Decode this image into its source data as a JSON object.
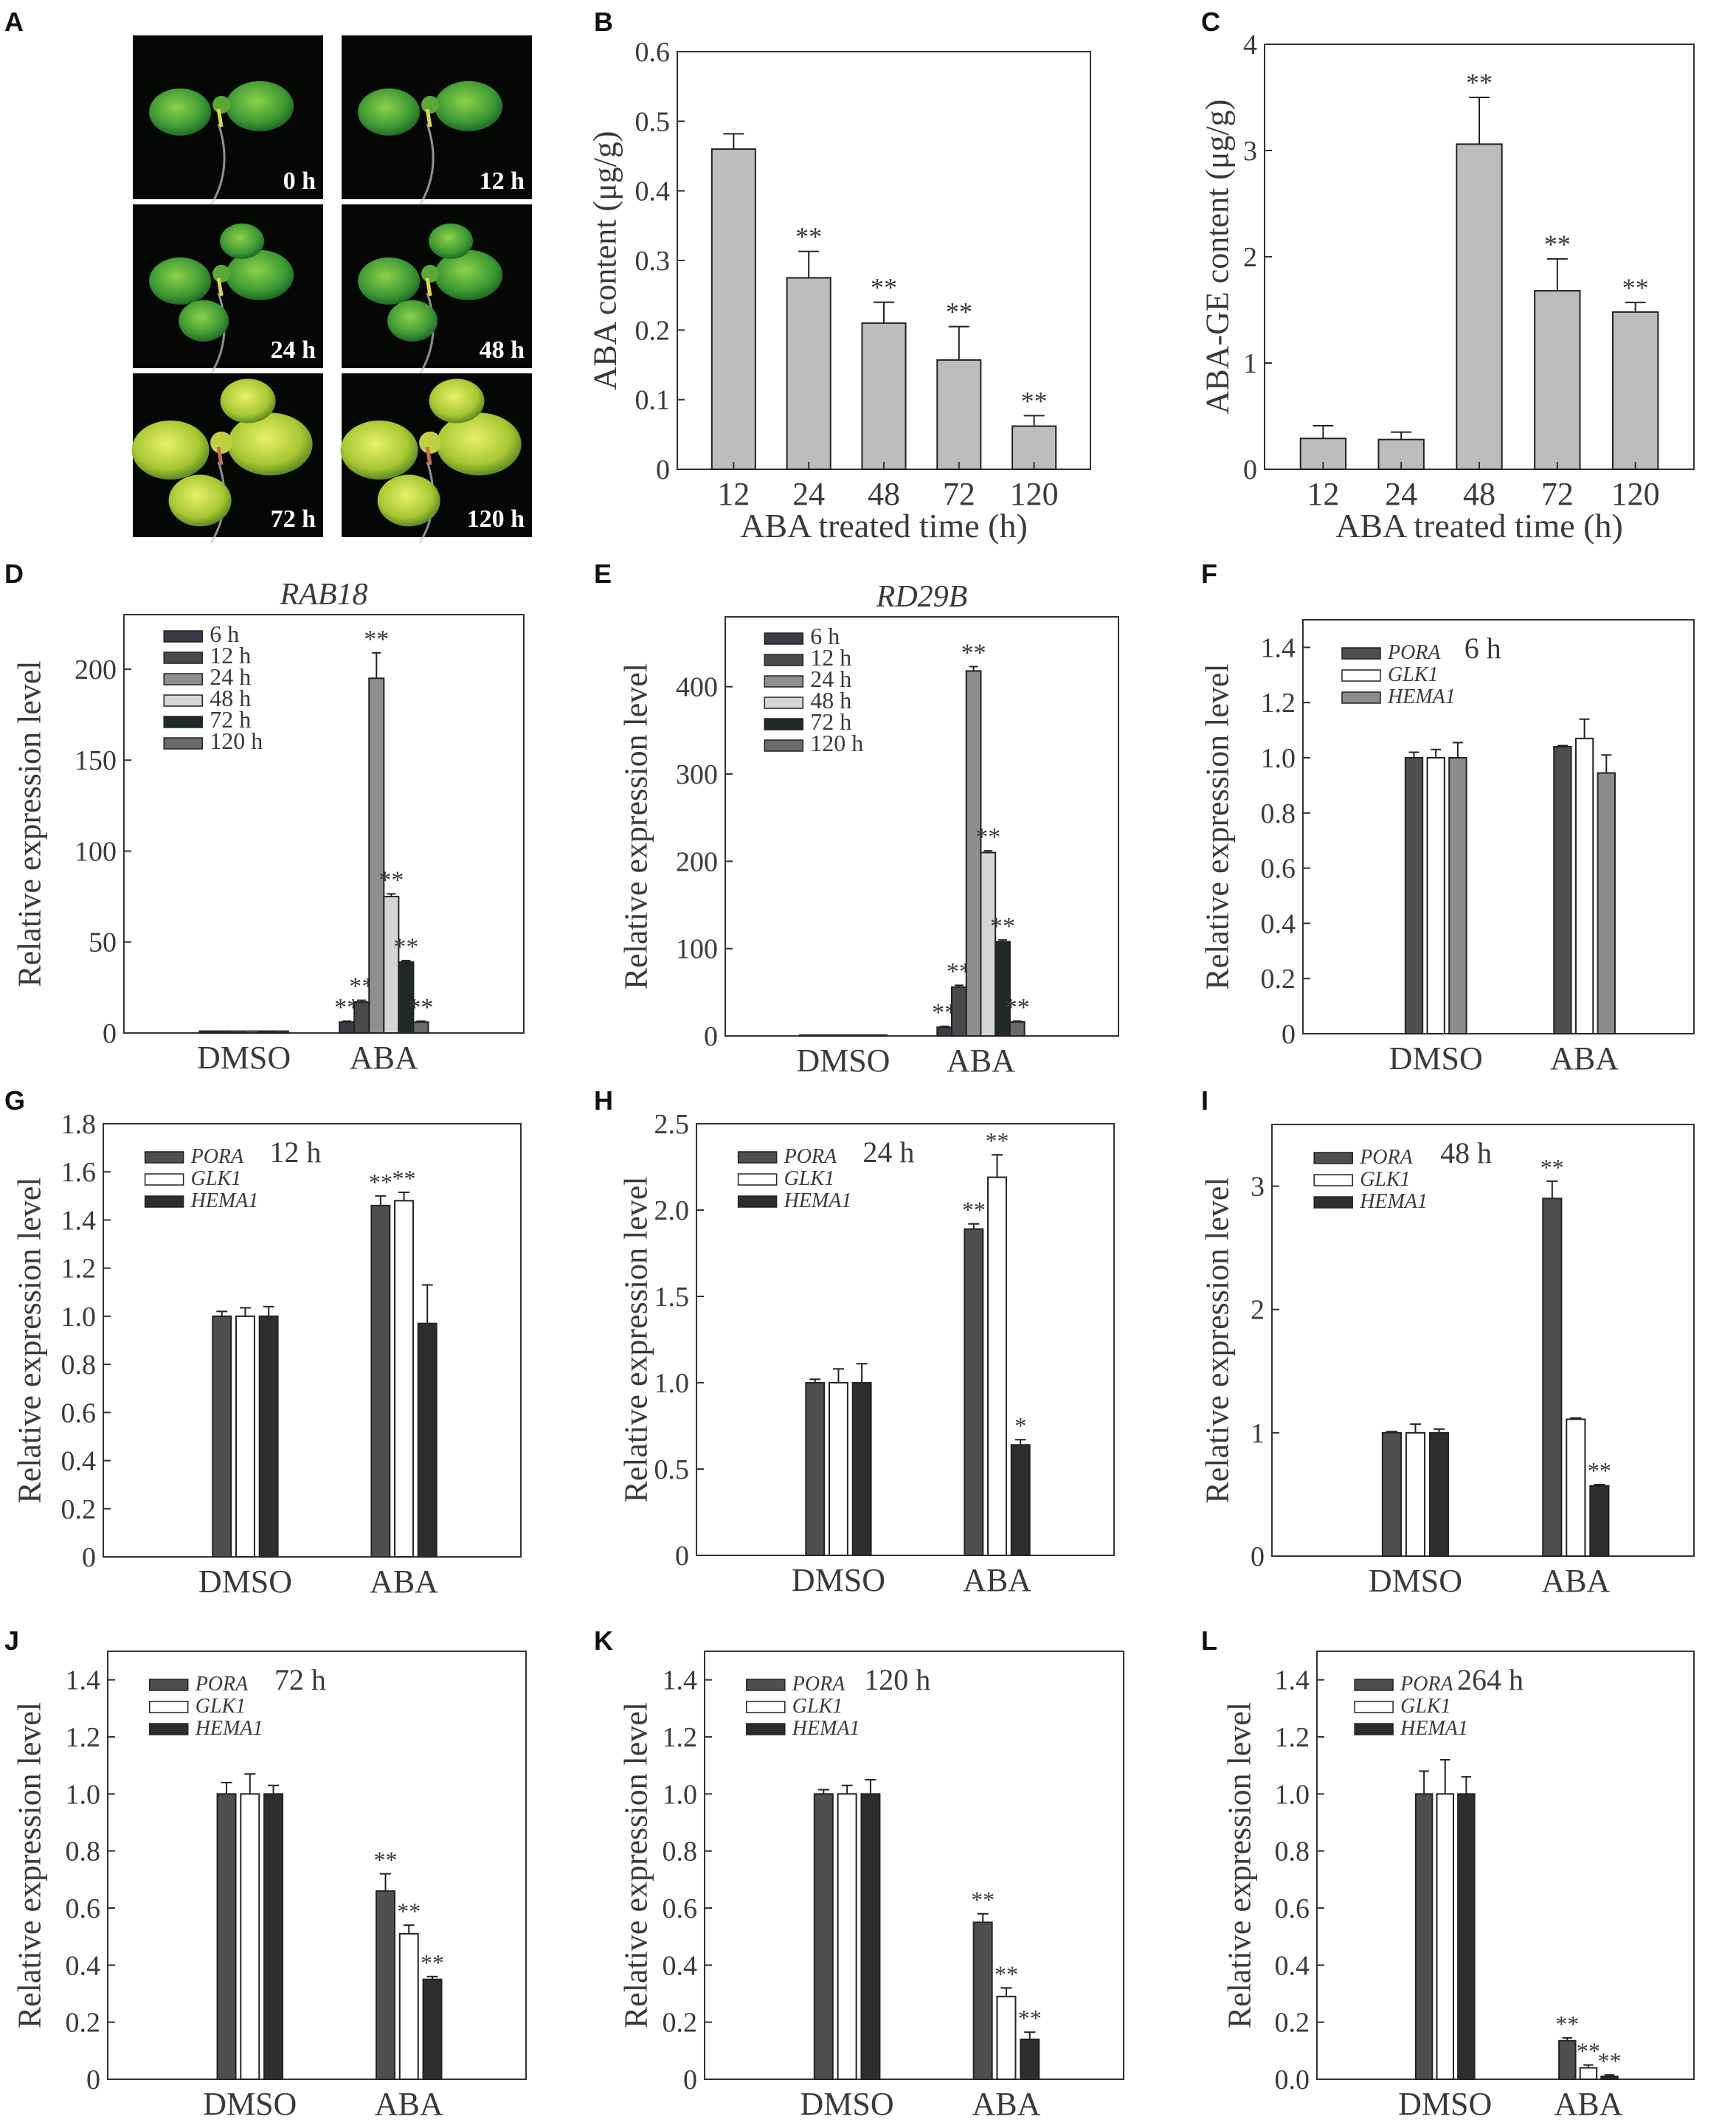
{
  "panel_a": {
    "label": "A",
    "photos": [
      {
        "label": "0 h"
      },
      {
        "label": "12 h"
      },
      {
        "label": "24 h"
      },
      {
        "label": "48 h"
      },
      {
        "label": "72 h"
      },
      {
        "label": "120 h"
      }
    ]
  },
  "colors": {
    "gray_bar": "#bdbdbd",
    "pora": "#4f4f4f",
    "glk1": "#ffffff",
    "hema1_F": "#8c8c8c",
    "hema1_dark": "#2e2e2e",
    "t6": "#3a3a48",
    "t12": "#4a4a4a",
    "t24": "#8f8f8f",
    "t48": "#d6d6d6",
    "t72": "#1f2a24",
    "t120": "#6a6a6a"
  },
  "chart_data": [
    {
      "id": "B",
      "panel": "B",
      "type": "bar",
      "categories": [
        "12",
        "24",
        "48",
        "72",
        "120"
      ],
      "values": [
        0.46,
        0.275,
        0.21,
        0.157,
        0.062
      ],
      "errors": [
        0.022,
        0.038,
        0.03,
        0.048,
        0.015
      ],
      "annotations": [
        "",
        "**",
        "**",
        "**",
        "**"
      ],
      "ylabel": "ABA content (μg/g)",
      "xlabel": "ABA treated time (h)",
      "ylim": [
        0,
        0.6
      ],
      "yticks": [
        "0",
        "0.1",
        "0.2",
        "0.3",
        "0.4",
        "0.5",
        "0.6"
      ]
    },
    {
      "id": "C",
      "panel": "C",
      "type": "bar",
      "categories": [
        "12",
        "24",
        "48",
        "72",
        "120"
      ],
      "values": [
        0.29,
        0.28,
        3.06,
        1.68,
        1.48
      ],
      "errors": [
        0.12,
        0.07,
        0.44,
        0.3,
        0.09
      ],
      "annotations": [
        "",
        "",
        "**",
        "**",
        "**"
      ],
      "ylabel": "ABA-GE content (μg/g)",
      "xlabel": "ABA treated time (h)",
      "ylim": [
        0,
        4
      ],
      "yticks": [
        "0",
        "1",
        "2",
        "3",
        "4"
      ]
    },
    {
      "id": "D",
      "panel": "D",
      "type": "bar",
      "title": "RAB18",
      "categories": [
        "DMSO",
        "ABA"
      ],
      "series": [
        {
          "name": "6 h",
          "values": [
            1,
            6
          ],
          "errors": [
            0,
            0.5
          ],
          "annotations": [
            "",
            "**"
          ]
        },
        {
          "name": "12 h",
          "values": [
            1,
            17
          ],
          "errors": [
            0,
            1
          ],
          "annotations": [
            "",
            "**"
          ]
        },
        {
          "name": "24 h",
          "values": [
            1,
            195
          ],
          "errors": [
            0,
            14
          ],
          "annotations": [
            "",
            "**"
          ]
        },
        {
          "name": "48 h",
          "values": [
            1,
            75
          ],
          "errors": [
            0,
            1.5
          ],
          "annotations": [
            "",
            "**"
          ]
        },
        {
          "name": "72 h",
          "values": [
            1,
            39
          ],
          "errors": [
            0,
            0.8
          ],
          "annotations": [
            "",
            "**"
          ]
        },
        {
          "name": "120 h",
          "values": [
            1,
            6
          ],
          "errors": [
            0,
            0.5
          ],
          "annotations": [
            "",
            "**"
          ]
        }
      ],
      "ylabel": "Relative expression level",
      "ylim": [
        0,
        230
      ],
      "yticks": [
        "0",
        "50",
        "100",
        "150",
        "200"
      ],
      "legend": "top-left"
    },
    {
      "id": "E",
      "panel": "E",
      "type": "bar",
      "title": "RD29B",
      "categories": [
        "DMSO",
        "ABA"
      ],
      "series": [
        {
          "name": "6 h",
          "values": [
            1,
            10
          ],
          "errors": [
            0,
            1
          ],
          "annotations": [
            "",
            "**"
          ]
        },
        {
          "name": "12 h",
          "values": [
            1,
            56
          ],
          "errors": [
            0,
            2
          ],
          "annotations": [
            "",
            "**"
          ]
        },
        {
          "name": "24 h",
          "values": [
            1,
            418
          ],
          "errors": [
            0,
            5
          ],
          "annotations": [
            "",
            "**"
          ]
        },
        {
          "name": "48 h",
          "values": [
            1,
            210
          ],
          "errors": [
            0,
            2
          ],
          "annotations": [
            "",
            "**"
          ]
        },
        {
          "name": "72 h",
          "values": [
            1,
            108
          ],
          "errors": [
            0,
            2
          ],
          "annotations": [
            "",
            "**"
          ]
        },
        {
          "name": "120 h",
          "values": [
            1,
            16
          ],
          "errors": [
            0,
            1
          ],
          "annotations": [
            "",
            "**"
          ]
        }
      ],
      "ylabel": "Relative expression level",
      "ylim": [
        0,
        480
      ],
      "yticks": [
        "0",
        "100",
        "200",
        "300",
        "400"
      ],
      "legend": "top-left"
    },
    {
      "id": "F",
      "panel": "F",
      "type": "bar",
      "title": "6 h",
      "categories": [
        "DMSO",
        "ABA"
      ],
      "series": [
        {
          "name": "PORA",
          "values": [
            1.0,
            1.04
          ],
          "errors": [
            0.02,
            0.004
          ],
          "annotations": [
            "",
            ""
          ]
        },
        {
          "name": "GLK1",
          "values": [
            1.0,
            1.07
          ],
          "errors": [
            0.03,
            0.07
          ],
          "annotations": [
            "",
            ""
          ]
        },
        {
          "name": "HEMA1",
          "values": [
            1.0,
            0.945
          ],
          "errors": [
            0.055,
            0.065
          ],
          "annotations": [
            "",
            ""
          ]
        }
      ],
      "ylabel": "Relative expression level",
      "ylim": [
        0,
        1.5
      ],
      "yticks": [
        "0",
        "0.2",
        "0.4",
        "0.6",
        "0.8",
        "1.0",
        "1.2",
        "1.4"
      ],
      "legend": "top-left"
    },
    {
      "id": "G",
      "panel": "G",
      "type": "bar",
      "title": "12 h",
      "categories": [
        "DMSO",
        "ABA"
      ],
      "series": [
        {
          "name": "PORA",
          "values": [
            1.0,
            1.46
          ],
          "errors": [
            0.02,
            0.04
          ],
          "annotations": [
            "",
            "**"
          ]
        },
        {
          "name": "GLK1",
          "values": [
            1.0,
            1.48
          ],
          "errors": [
            0.035,
            0.035
          ],
          "annotations": [
            "",
            "**"
          ]
        },
        {
          "name": "HEMA1",
          "values": [
            1.0,
            0.97
          ],
          "errors": [
            0.04,
            0.16
          ],
          "annotations": [
            "",
            ""
          ]
        }
      ],
      "ylabel": "Relative expression level",
      "ylim": [
        0,
        1.8
      ],
      "yticks": [
        "0",
        "0.2",
        "0.4",
        "0.6",
        "0.8",
        "1.0",
        "1.2",
        "1.4",
        "1.6",
        "1.8"
      ],
      "legend": "top-left"
    },
    {
      "id": "H",
      "panel": "H",
      "type": "bar",
      "title": "24 h",
      "categories": [
        "DMSO",
        "ABA"
      ],
      "series": [
        {
          "name": "PORA",
          "values": [
            1.0,
            1.89
          ],
          "errors": [
            0.02,
            0.03
          ],
          "annotations": [
            "",
            "**"
          ]
        },
        {
          "name": "GLK1",
          "values": [
            1.0,
            2.19
          ],
          "errors": [
            0.08,
            0.13
          ],
          "annotations": [
            "",
            "**"
          ]
        },
        {
          "name": "HEMA1",
          "values": [
            1.0,
            0.64
          ],
          "errors": [
            0.11,
            0.03
          ],
          "annotations": [
            "",
            "*"
          ]
        }
      ],
      "ylabel": "Relative expression level",
      "ylim": [
        0,
        2.5
      ],
      "yticks": [
        "0",
        "0.5",
        "1.0",
        "1.5",
        "2.0",
        "2.5"
      ],
      "legend": "top-left"
    },
    {
      "id": "I",
      "panel": "I",
      "type": "bar",
      "title": "48 h",
      "categories": [
        "DMSO",
        "ABA"
      ],
      "series": [
        {
          "name": "PORA",
          "values": [
            1.0,
            2.9
          ],
          "errors": [
            0.01,
            0.14
          ],
          "annotations": [
            "",
            "**"
          ]
        },
        {
          "name": "GLK1",
          "values": [
            1.0,
            1.11
          ],
          "errors": [
            0.07,
            0.01
          ],
          "annotations": [
            "",
            ""
          ]
        },
        {
          "name": "HEMA1",
          "values": [
            1.0,
            0.57
          ],
          "errors": [
            0.03,
            0.01
          ],
          "annotations": [
            "",
            "**"
          ]
        }
      ],
      "ylabel": "Relative expression level",
      "ylim": [
        0,
        3.5
      ],
      "yticks": [
        "0",
        "1",
        "2",
        "3"
      ],
      "legend": "top-left"
    },
    {
      "id": "J",
      "panel": "J",
      "type": "bar",
      "title": "72 h",
      "categories": [
        "DMSO",
        "ABA"
      ],
      "series": [
        {
          "name": "PORA",
          "values": [
            1.0,
            0.66
          ],
          "errors": [
            0.04,
            0.06
          ],
          "annotations": [
            "",
            "**"
          ]
        },
        {
          "name": "GLK1",
          "values": [
            1.0,
            0.51
          ],
          "errors": [
            0.07,
            0.03
          ],
          "annotations": [
            "",
            "**"
          ]
        },
        {
          "name": "HEMA1",
          "values": [
            1.0,
            0.35
          ],
          "errors": [
            0.03,
            0.01
          ],
          "annotations": [
            "",
            "**"
          ]
        }
      ],
      "ylabel": "Relative expression level",
      "ylim": [
        0,
        1.5
      ],
      "yticks": [
        "0",
        "0.2",
        "0.4",
        "0.6",
        "0.8",
        "1.0",
        "1.2",
        "1.4"
      ],
      "legend": "top-left"
    },
    {
      "id": "K",
      "panel": "K",
      "type": "bar",
      "title": "120 h",
      "categories": [
        "DMSO",
        "ABA"
      ],
      "series": [
        {
          "name": "PORA",
          "values": [
            1.0,
            0.55
          ],
          "errors": [
            0.015,
            0.03
          ],
          "annotations": [
            "",
            "**"
          ]
        },
        {
          "name": "GLK1",
          "values": [
            1.0,
            0.29
          ],
          "errors": [
            0.03,
            0.03
          ],
          "annotations": [
            "",
            "**"
          ]
        },
        {
          "name": "HEMA1",
          "values": [
            1.0,
            0.14
          ],
          "errors": [
            0.05,
            0.025
          ],
          "annotations": [
            "",
            "**"
          ]
        }
      ],
      "ylabel": "Relative expression level",
      "ylim": [
        0,
        1.5
      ],
      "yticks": [
        "0",
        "0.2",
        "0.4",
        "0.6",
        "0.8",
        "1.0",
        "1.2",
        "1.4"
      ],
      "legend": "top-left"
    },
    {
      "id": "L",
      "panel": "L",
      "type": "bar",
      "title": "264 h",
      "categories": [
        "DMSO",
        "ABA"
      ],
      "series": [
        {
          "name": "PORA",
          "values": [
            1.0,
            0.135
          ],
          "errors": [
            0.08,
            0.01
          ],
          "annotations": [
            "",
            "**"
          ]
        },
        {
          "name": "GLK1",
          "values": [
            1.0,
            0.04
          ],
          "errors": [
            0.12,
            0.01
          ],
          "annotations": [
            "",
            "**"
          ]
        },
        {
          "name": "HEMA1",
          "values": [
            1.0,
            0.01
          ],
          "errors": [
            0.06,
            0.005
          ],
          "annotations": [
            "",
            "**"
          ]
        }
      ],
      "ylabel": "Relative expression level",
      "ylim": [
        0,
        1.5
      ],
      "yticks": [
        "0.0",
        "0.2",
        "0.4",
        "0.6",
        "0.8",
        "1.0",
        "1.2",
        "1.4"
      ],
      "legend": "top-left"
    }
  ]
}
